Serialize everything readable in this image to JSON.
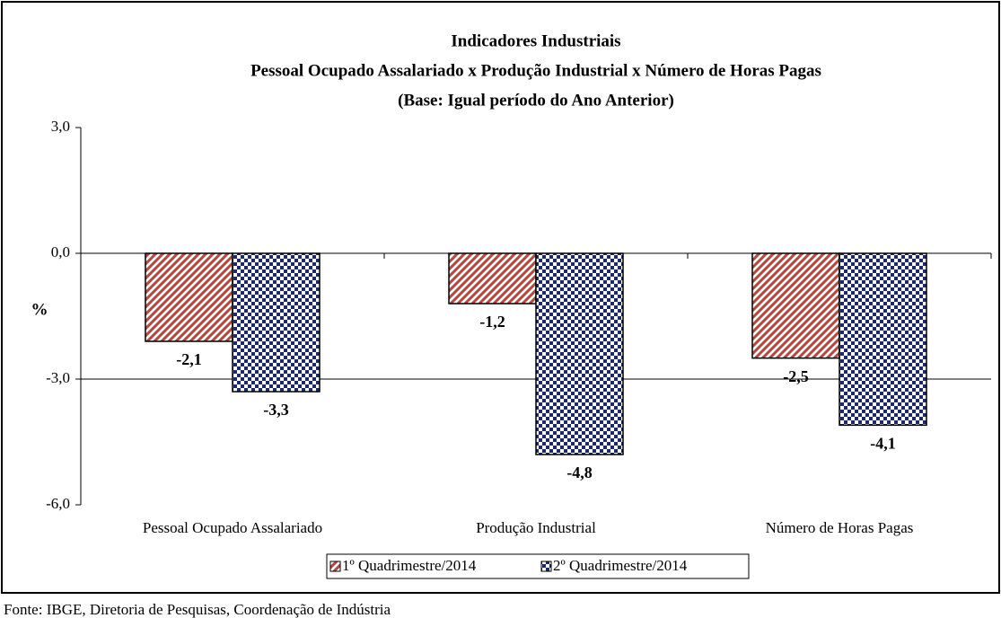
{
  "chart_data": {
    "type": "bar",
    "title": [
      "Indicadores Industriais",
      "Pessoal Ocupado  Assalariado x Produção Industrial x Número de Horas Pagas",
      "(Base: Igual período do Ano Anterior)"
    ],
    "y_label": "%",
    "categories": [
      "Pessoal Ocupado Assalariado",
      "Produção Industrial",
      "Número de Horas Pagas"
    ],
    "series": [
      {
        "name": "1º Quadrimestre/2014",
        "color": "#b5473c",
        "values": [
          -2.1,
          -1.2,
          -2.5
        ],
        "value_labels": [
          "-2,1",
          "-1,2",
          "-2,5"
        ]
      },
      {
        "name": "2º Quadrimestre/2014",
        "color": "#1c2a6b",
        "values": [
          -3.3,
          -4.8,
          -4.1
        ],
        "value_labels": [
          "-3,3",
          "-4,8",
          "-4,1"
        ]
      }
    ],
    "ylim": [
      -6,
      3
    ],
    "yticks": [
      {
        "value": -6,
        "label": "-6,0"
      },
      {
        "value": -3,
        "label": "-3,0"
      },
      {
        "value": 0,
        "label": "0,0"
      },
      {
        "value": 3,
        "label": "3,0"
      }
    ],
    "grid": true
  },
  "source": "Fonte: IBGE, Diretoria de Pesquisas, Coordenação de Indústria"
}
